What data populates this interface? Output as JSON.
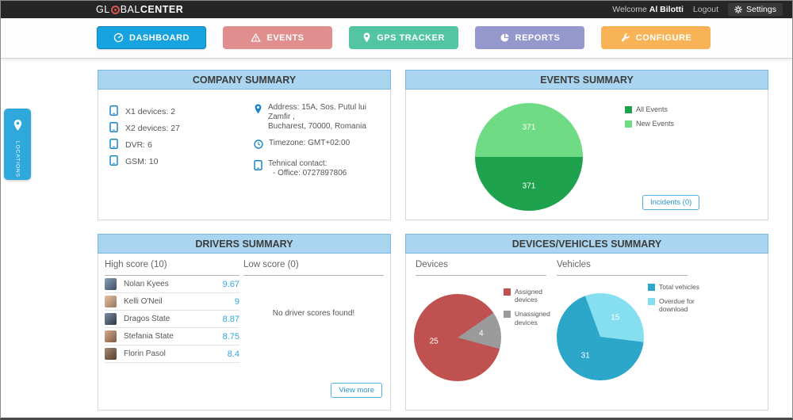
{
  "topbar": {
    "logo": {
      "part1": "GL",
      "part2": "BAL",
      "part3": "CENTER"
    },
    "welcome_label": "Welcome",
    "user_name": "Al Bilotti",
    "logout_label": "Logout",
    "settings_label": "Settings"
  },
  "nav": {
    "items": [
      {
        "label": "DASHBOARD",
        "icon": "gauge-icon",
        "color": "#17a2e0",
        "active": true
      },
      {
        "label": "EVENTS",
        "icon": "warning-icon",
        "color": "#e08e8e",
        "active": false
      },
      {
        "label": "GPS TRACKER",
        "icon": "pin-icon",
        "color": "#53c5a2",
        "active": false
      },
      {
        "label": "REPORTS",
        "icon": "pie-icon",
        "color": "#9598cd",
        "active": false
      },
      {
        "label": "CONFIGURE",
        "icon": "wrench-icon",
        "color": "#f9b357",
        "active": false
      }
    ]
  },
  "locations_tab": {
    "label": "LOCATIONS"
  },
  "panels": {
    "company": {
      "title": "COMPANY SUMMARY",
      "device_counts": [
        "X1 devices: 2",
        "X2 devices: 27",
        "DVR: 6",
        "GSM: 10"
      ],
      "address_line1": "Address: 15A, Sos. Putul lui Zamfir ,",
      "address_line2": "Bucharest, 70000, Romania",
      "timezone": "Timezone: GMT+02:00",
      "contact_label": "Tehnical contact:",
      "contact_value": "- Office: 0727897806"
    },
    "events": {
      "title": "EVENTS SUMMARY",
      "legend": [
        {
          "label": "All Events",
          "color": "#1fa24d"
        },
        {
          "label": "New Events",
          "color": "#6fdb85"
        }
      ],
      "incidents_button": "Incidents (0)"
    },
    "drivers": {
      "title": "DRIVERS SUMMARY",
      "high_header": "High score (10)",
      "low_header": "Low score (0)",
      "high_scores": [
        {
          "name": "Nolan Kyees",
          "score": "9.67"
        },
        {
          "name": "Kelli O'Neil",
          "score": "9"
        },
        {
          "name": "Dragos State",
          "score": "8.87"
        },
        {
          "name": "Stefania State",
          "score": "8.75"
        },
        {
          "name": "Florin Pasol",
          "score": "8.4"
        }
      ],
      "low_empty_message": "No driver scores found!",
      "view_more_button": "View more"
    },
    "devices_vehicles": {
      "title": "DEVICES/VEHICLES SUMMARY",
      "devices_header": "Devices",
      "vehicles_header": "Vehicles",
      "devices_legend": [
        {
          "label": "Assigned devices",
          "color": "#bf5250"
        },
        {
          "label": "Unassigned devices",
          "color": "#9b9b9b"
        }
      ],
      "vehicles_legend": [
        {
          "label": "Total vehicles",
          "color": "#2ca7c9"
        },
        {
          "label": "Overdue for download",
          "color": "#86dff0"
        }
      ]
    }
  },
  "chart_data": [
    {
      "type": "pie",
      "title": "Events Summary",
      "labels": [
        "New Events",
        "All Events"
      ],
      "values": [
        371,
        371
      ],
      "colors": [
        "#6fdb85",
        "#1fa24d"
      ],
      "start_angle": 270,
      "legend_position": "right"
    },
    {
      "type": "pie",
      "title": "Devices",
      "labels": [
        "Assigned devices",
        "Unassigned devices"
      ],
      "values": [
        25,
        4
      ],
      "colors": [
        "#bf5250",
        "#9b9b9b"
      ],
      "start_angle": 105,
      "legend_position": "right"
    },
    {
      "type": "pie",
      "title": "Vehicles",
      "labels": [
        "Total vehicles",
        "Overdue for download"
      ],
      "values": [
        31,
        15
      ],
      "colors": [
        "#2ca7c9",
        "#86dff0"
      ],
      "start_angle": 97,
      "legend_position": "right"
    }
  ]
}
